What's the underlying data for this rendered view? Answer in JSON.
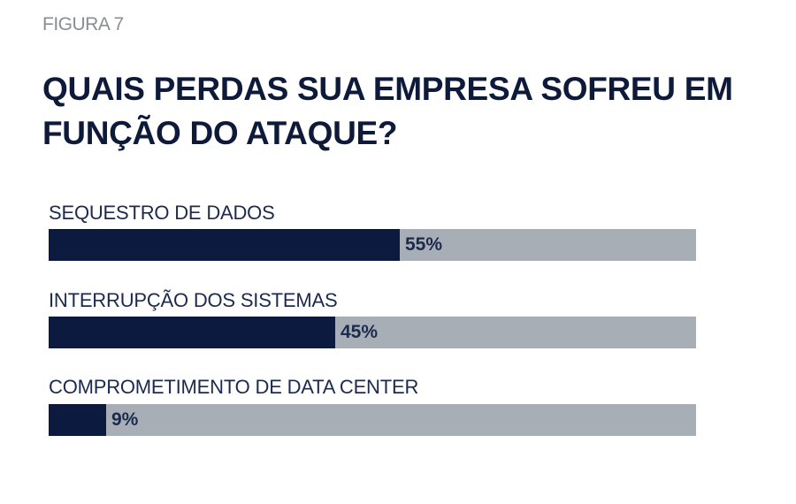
{
  "figure_label": "FIGURA 7",
  "chart_data": {
    "type": "bar",
    "orientation": "horizontal",
    "title": "QUAIS PERDAS SUA EMPRESA SOFREU EM FUNÇÃO DO ATAQUE?",
    "categories": [
      "SEQUESTRO DE DADOS",
      "INTERRUPÇÃO DOS SISTEMAS",
      "COMPROMETIMENTO DE DATA CENTER"
    ],
    "values": [
      55,
      45,
      9
    ],
    "value_labels": [
      "55%",
      "45%",
      "9%"
    ],
    "xlim": [
      0,
      100
    ],
    "colors": {
      "fill": "#0d1a40",
      "track": "#a7aeb6"
    }
  }
}
